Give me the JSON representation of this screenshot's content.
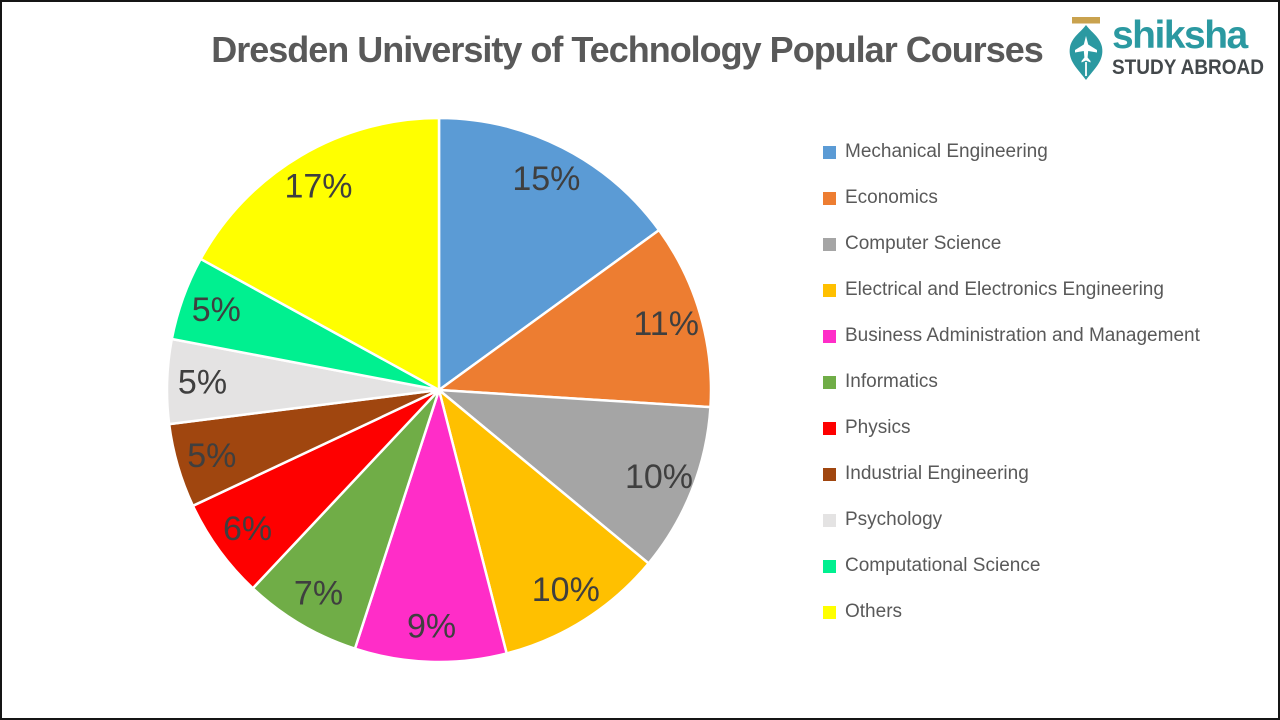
{
  "title": "Dresden University of Technology Popular Courses",
  "logo": {
    "brand": "shiksha",
    "tagline": "STUDY ABROAD",
    "icon": "pen-nib-with-airplane",
    "brand_color": "#2B99A1",
    "tagline_color": "#43484B",
    "nib_color": "#2B99A1",
    "cap_color": "#C9A24E"
  },
  "chart_data": {
    "type": "pie",
    "title": "Dresden University of Technology Popular Courses",
    "categories": [
      "Mechanical Engineering",
      "Economics",
      "Computer Science",
      "Electrical and Electronics Engineering",
      "Business Administration and Management",
      "Informatics",
      "Physics",
      "Industrial Engineering",
      "Psychology",
      "Computational Science",
      "Others"
    ],
    "values": [
      15,
      11,
      10,
      10,
      9,
      7,
      6,
      5,
      5,
      5,
      17
    ],
    "labels": [
      "15%",
      "11%",
      "10%",
      "10%",
      "9%",
      "7%",
      "6%",
      "5%",
      "5%",
      "5%",
      "17%"
    ],
    "colors": [
      "#5B9BD5",
      "#ED7D31",
      "#A5A5A5",
      "#FFC000",
      "#FF2DC8",
      "#70AD47",
      "#FE0000",
      "#A0460F",
      "#E4E3E3",
      "#00F090",
      "#FFFF00"
    ],
    "start_angle_deg": 0,
    "direction": "clockwise",
    "legend_position": "right",
    "label_color": "#3F3F3F",
    "legend_text_color": "#595959",
    "slice_stroke": "#FFFFFF"
  }
}
